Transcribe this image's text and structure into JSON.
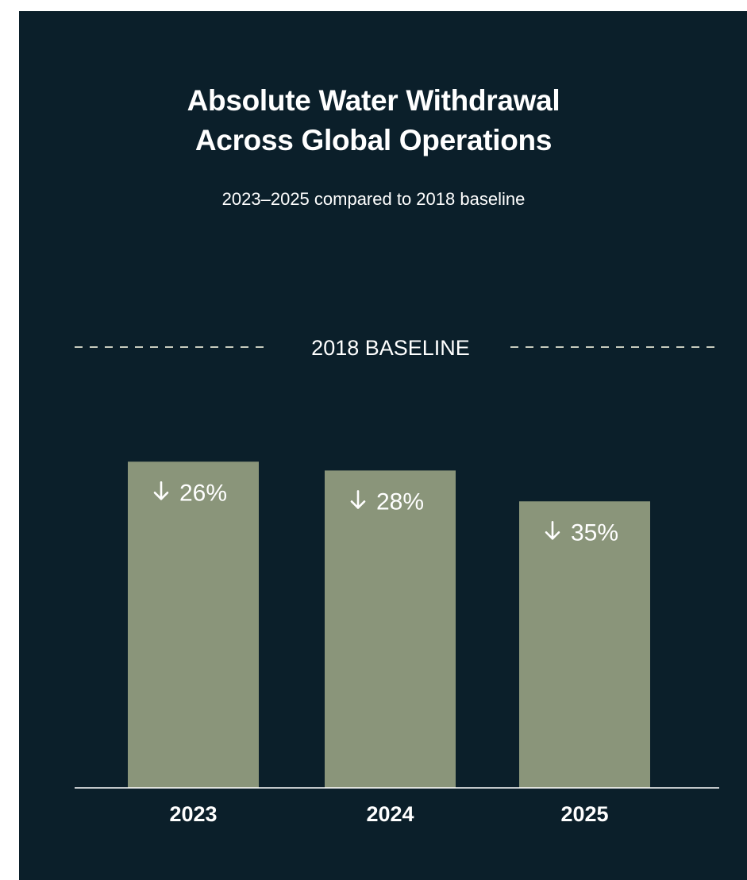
{
  "title_lines": [
    "Absolute Water Withdrawal",
    "Across Global Operations"
  ],
  "subtitle": "2023–2025 compared to 2018 baseline",
  "colors": {
    "background": "#0b1f2a",
    "bar": "#8a957a",
    "text": "#ffffff",
    "baseline_dash": "#c8ccbe",
    "axis": "#ffffff"
  },
  "chart_data": {
    "type": "bar",
    "title": "Absolute Water Withdrawal Across Global Operations",
    "subtitle": "2023–2025 compared to 2018 baseline",
    "categories": [
      "2023",
      "2024",
      "2025"
    ],
    "values": [
      74,
      72,
      65
    ],
    "value_unit": "% of 2018 baseline",
    "data_labels": [
      "26%",
      "28%",
      "35%"
    ],
    "data_label_icon": "arrow-down-icon",
    "baseline": {
      "label": "2018 BASELINE",
      "value": 100
    },
    "ylim": [
      0,
      100
    ],
    "grid": false,
    "legend": "none"
  }
}
